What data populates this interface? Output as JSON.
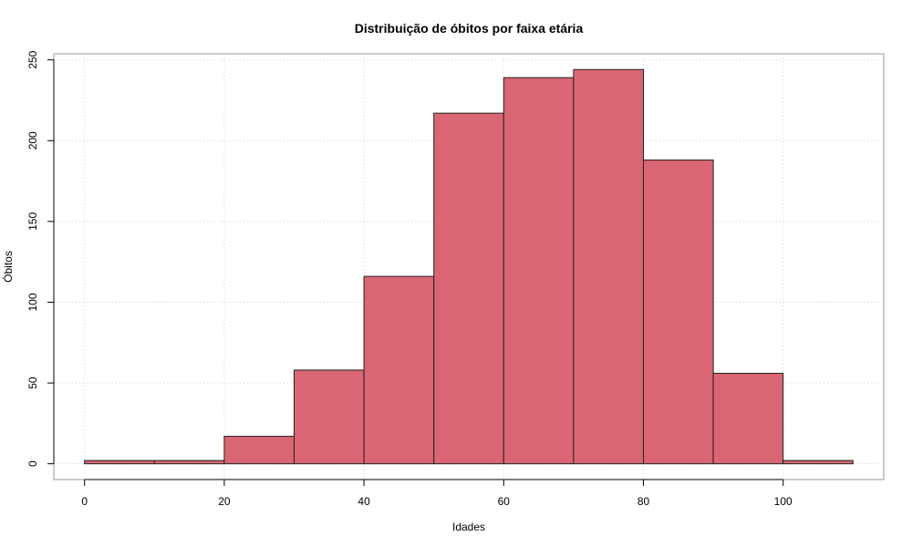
{
  "chart_data": {
    "type": "bar",
    "title": "Distribuição de óbitos por faixa etária",
    "xlabel": "Idades",
    "ylabel": "Óbitos",
    "bins": [
      {
        "from": 0,
        "to": 10,
        "value": 2
      },
      {
        "from": 10,
        "to": 20,
        "value": 2
      },
      {
        "from": 20,
        "to": 30,
        "value": 17
      },
      {
        "from": 30,
        "to": 40,
        "value": 58
      },
      {
        "from": 40,
        "to": 50,
        "value": 116
      },
      {
        "from": 50,
        "to": 60,
        "value": 217
      },
      {
        "from": 60,
        "to": 70,
        "value": 239
      },
      {
        "from": 70,
        "to": 80,
        "value": 244
      },
      {
        "from": 80,
        "to": 90,
        "value": 188
      },
      {
        "from": 90,
        "to": 100,
        "value": 56
      },
      {
        "from": 100,
        "to": 110,
        "value": 2
      }
    ],
    "xlim": [
      -4.4,
      114.4
    ],
    "ylim": [
      -9.76,
      253.76
    ],
    "xticks": [
      "0",
      "20",
      "40",
      "60",
      "80",
      "100"
    ],
    "yticks": [
      "0",
      "50",
      "100",
      "150",
      "200",
      "250"
    ],
    "grid": true,
    "colors": {
      "bar_fill": "#d96672",
      "bar_stroke": "#222222",
      "grid": "#d3d3d3",
      "box": "#9a9a9a"
    }
  }
}
